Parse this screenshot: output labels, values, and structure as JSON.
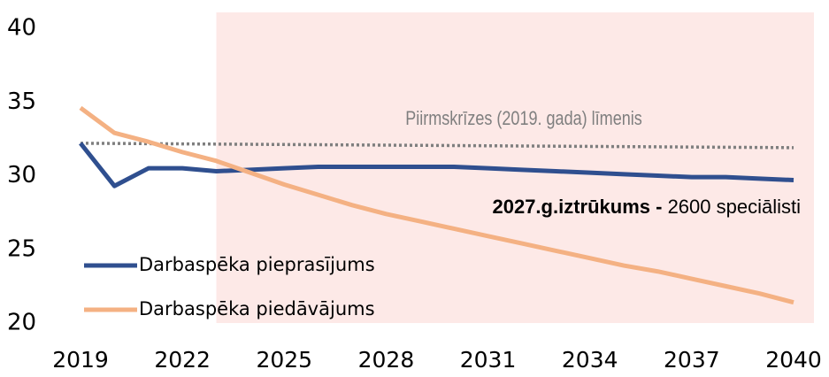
{
  "chart_data": {
    "type": "line",
    "x": [
      2019,
      2020,
      2021,
      2022,
      2023,
      2024,
      2025,
      2026,
      2027,
      2028,
      2029,
      2030,
      2031,
      2032,
      2033,
      2034,
      2035,
      2036,
      2037,
      2038,
      2039,
      2040
    ],
    "series": [
      {
        "name": "Darbaspēka pieprasījums",
        "color": "#2f4f8f",
        "values": [
          32.2,
          29.3,
          30.5,
          30.5,
          30.3,
          30.4,
          30.5,
          30.6,
          30.6,
          30.6,
          30.6,
          30.6,
          30.5,
          30.4,
          30.3,
          30.2,
          30.1,
          30.0,
          29.9,
          29.9,
          29.8,
          29.7
        ]
      },
      {
        "name": "Darbaspēka piedāvājums",
        "color": "#f4b183",
        "values": [
          34.6,
          32.9,
          32.3,
          31.6,
          31.0,
          30.2,
          29.4,
          28.7,
          28.0,
          27.4,
          26.9,
          26.4,
          25.9,
          25.4,
          24.9,
          24.4,
          23.9,
          23.5,
          23.0,
          22.5,
          22.0,
          21.4
        ]
      }
    ],
    "reference": {
      "label": "Piirmskrīzes (2019. gada) līmenis",
      "x": [
        2019,
        2040
      ],
      "values": [
        32.2,
        31.9
      ],
      "color": "#7f7f7f"
    },
    "annotation": {
      "bold": "2027.g.iztrūkums -",
      "text": "2600 speciālisti"
    },
    "shaded_from": 2023,
    "shade_color": "#fde9e7",
    "xlim": [
      2019,
      2040
    ],
    "xticks": [
      2019,
      2022,
      2025,
      2028,
      2031,
      2034,
      2037,
      2040
    ],
    "ylim": [
      20,
      40
    ],
    "yticks": [
      20,
      25,
      30,
      35,
      40
    ],
    "legend": "lower left"
  }
}
